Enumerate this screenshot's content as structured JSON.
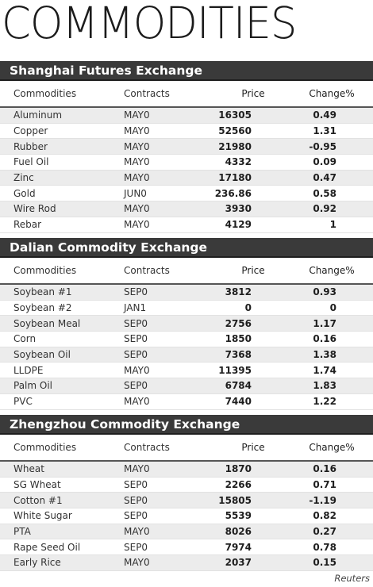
{
  "title": "COMMODITIES",
  "columns": {
    "commodity": "Commodities",
    "contract": "Contracts",
    "price": "Price",
    "change": "Change%"
  },
  "sections": [
    {
      "name": "Shanghai Futures Exchange",
      "rows": [
        {
          "commodity": "Aluminum",
          "contract": "MAY0",
          "price": "16305",
          "change": "0.49"
        },
        {
          "commodity": "Copper",
          "contract": "MAY0",
          "price": "52560",
          "change": "1.31"
        },
        {
          "commodity": "Rubber",
          "contract": "MAY0",
          "price": "21980",
          "change": "-0.95"
        },
        {
          "commodity": "Fuel Oil",
          "contract": "MAY0",
          "price": "4332",
          "change": "0.09"
        },
        {
          "commodity": "Zinc",
          "contract": "MAY0",
          "price": "17180",
          "change": "0.47"
        },
        {
          "commodity": "Gold",
          "contract": "JUN0",
          "price": "236.86",
          "change": "0.58"
        },
        {
          "commodity": "Wire Rod",
          "contract": "MAY0",
          "price": "3930",
          "change": "0.92"
        },
        {
          "commodity": "Rebar",
          "contract": "MAY0",
          "price": "4129",
          "change": "1"
        }
      ]
    },
    {
      "name": "Dalian Commodity Exchange",
      "rows": [
        {
          "commodity": "Soybean #1",
          "contract": "SEP0",
          "price": "3812",
          "change": "0.93"
        },
        {
          "commodity": "Soybean #2",
          "contract": "JAN1",
          "price": "0",
          "change": "0"
        },
        {
          "commodity": "Soybean Meal",
          "contract": "SEP0",
          "price": "2756",
          "change": "1.17"
        },
        {
          "commodity": "Corn",
          "contract": "SEP0",
          "price": "1850",
          "change": "0.16"
        },
        {
          "commodity": "Soybean Oil",
          "contract": "SEP0",
          "price": "7368",
          "change": "1.38"
        },
        {
          "commodity": "LLDPE",
          "contract": "MAY0",
          "price": "11395",
          "change": "1.74"
        },
        {
          "commodity": "Palm Oil",
          "contract": "SEP0",
          "price": "6784",
          "change": "1.83"
        },
        {
          "commodity": "PVC",
          "contract": "MAY0",
          "price": "7440",
          "change": "1.22"
        }
      ]
    },
    {
      "name": "Zhengzhou Commodity Exchange",
      "rows": [
        {
          "commodity": "Wheat",
          "contract": "MAY0",
          "price": "1870",
          "change": "0.16"
        },
        {
          "commodity": "SG Wheat",
          "contract": "SEP0",
          "price": "2266",
          "change": "0.71"
        },
        {
          "commodity": "Cotton #1",
          "contract": "SEP0",
          "price": "15805",
          "change": "-1.19"
        },
        {
          "commodity": "White Sugar",
          "contract": "SEP0",
          "price": "5539",
          "change": "0.82"
        },
        {
          "commodity": "PTA",
          "contract": "MAY0",
          "price": "8026",
          "change": "0.27"
        },
        {
          "commodity": "Rape Seed Oil",
          "contract": "SEP0",
          "price": "7974",
          "change": "0.78"
        },
        {
          "commodity": "Early Rice",
          "contract": "MAY0",
          "price": "2037",
          "change": "0.15"
        }
      ]
    }
  ],
  "source": "Reuters"
}
